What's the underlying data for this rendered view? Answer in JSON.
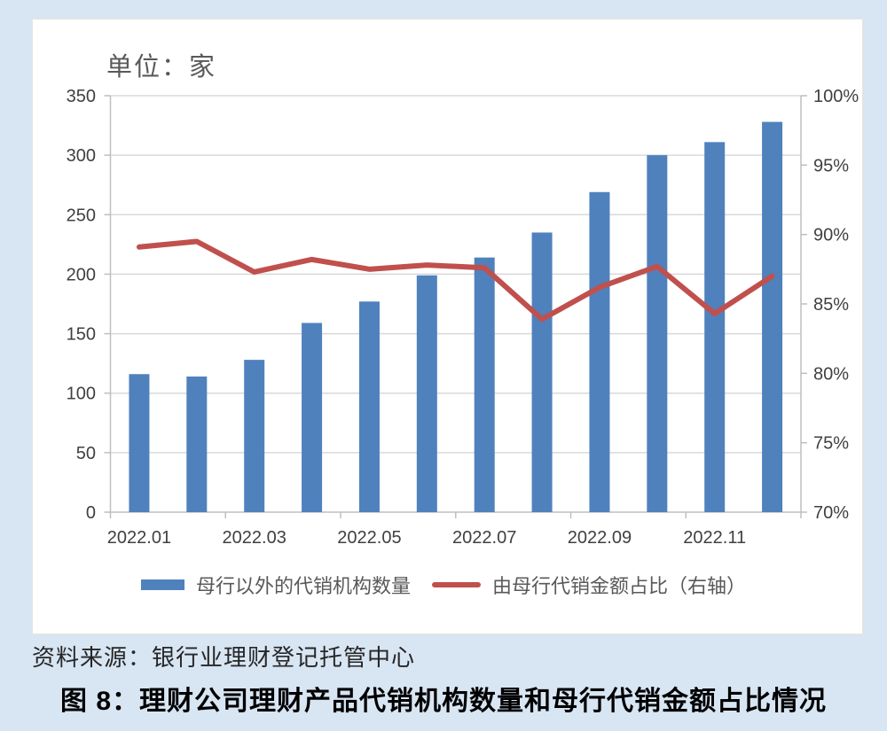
{
  "page": {
    "background_color": "#d8e5f3",
    "card_color": "#ffffff"
  },
  "unit_label": "单位：家",
  "source_note": "资料来源：银行业理财登记托管中心",
  "figure_caption": "图 8：理财公司理财产品代销机构数量和母行代销金额占比情况",
  "legend": {
    "bar_label": "母行以外的代销机构数量",
    "line_label": "由母行代销金额占比（右轴）"
  },
  "colors": {
    "bar": "#4f81bd",
    "line": "#c0504d",
    "gridline": "#d9d9d9",
    "axis": "#bfbfbf",
    "axis_text": "#404040"
  },
  "chart_data": {
    "type": "bar+line combo",
    "x": [
      "2022.01",
      "2022.02",
      "2022.03",
      "2022.04",
      "2022.05",
      "2022.06",
      "2022.07",
      "2022.08",
      "2022.09",
      "2022.10",
      "2022.11",
      "2022.12"
    ],
    "x_tick_labels": [
      "2022.01",
      "2022.03",
      "2022.05",
      "2022.07",
      "2022.09",
      "2022.11"
    ],
    "series": [
      {
        "name": "母行以外的代销机构数量",
        "type": "bar",
        "axis": "left",
        "color": "#4f81bd",
        "values": [
          116,
          114,
          128,
          159,
          177,
          199,
          214,
          235,
          269,
          300,
          311,
          328
        ]
      },
      {
        "name": "由母行代销金额占比（右轴）",
        "type": "line",
        "axis": "right",
        "color": "#c0504d",
        "values_percent": [
          89.1,
          89.5,
          87.3,
          88.2,
          87.5,
          87.8,
          87.6,
          83.9,
          86.2,
          87.7,
          84.3,
          87.0
        ]
      }
    ],
    "left_axis": {
      "min": 0,
      "max": 350,
      "step": 50,
      "tick_labels": [
        "0",
        "50",
        "100",
        "150",
        "200",
        "250",
        "300",
        "350"
      ]
    },
    "right_axis": {
      "min": 70,
      "max": 100,
      "step": 5,
      "tick_labels": [
        "70%",
        "75%",
        "80%",
        "85%",
        "90%",
        "95%",
        "100%"
      ]
    },
    "grid": "horizontal, at left-axis steps of 50",
    "legend_position": "bottom center"
  }
}
